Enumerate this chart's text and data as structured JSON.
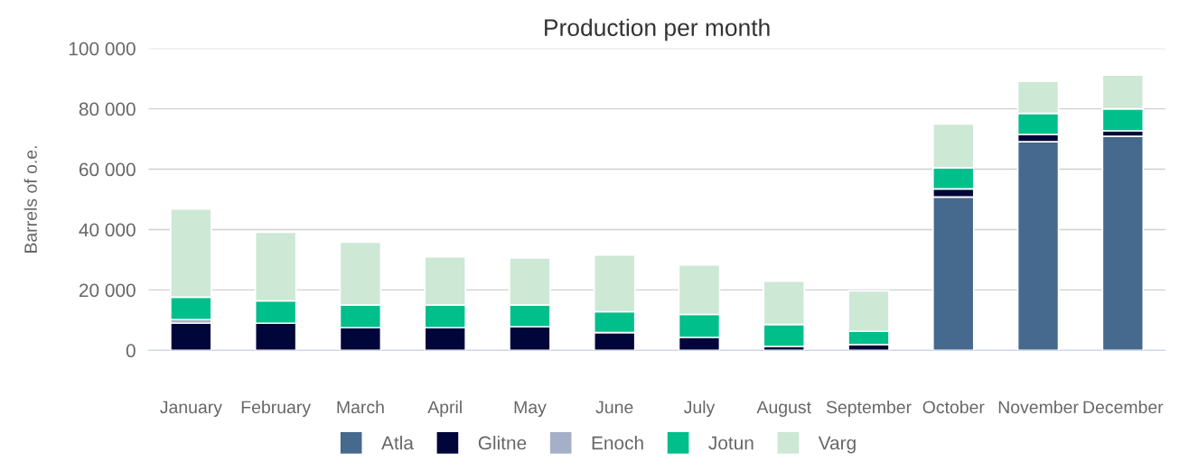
{
  "chart_data": {
    "type": "bar",
    "title": "Production per month",
    "ylabel": "Barrels of o.e.",
    "stacked": true,
    "categories": [
      "January",
      "February",
      "March",
      "April",
      "May",
      "June",
      "July",
      "August",
      "September",
      "October",
      "November",
      "December"
    ],
    "series": [
      {
        "name": "Atla",
        "color": "#46698e",
        "values": [
          0,
          0,
          0,
          0,
          0,
          0,
          0,
          0,
          0,
          50800,
          69100,
          70900
        ]
      },
      {
        "name": "Glitne",
        "color": "#00053a",
        "values": [
          9000,
          9000,
          7500,
          7500,
          7800,
          5900,
          4300,
          1300,
          1900,
          2700,
          2400,
          1800
        ]
      },
      {
        "name": "Enoch",
        "color": "#a5b0c8",
        "values": [
          1200,
          null,
          null,
          null,
          null,
          null,
          null,
          null,
          null,
          null,
          null,
          null
        ]
      },
      {
        "name": "Jotun",
        "color": "#00bf8a",
        "values": [
          7400,
          7400,
          7500,
          7500,
          7200,
          6900,
          7600,
          7300,
          4400,
          7000,
          7000,
          7300
        ]
      },
      {
        "name": "Varg",
        "color": "#cde8d5",
        "values": [
          29200,
          22700,
          20800,
          16000,
          15600,
          18800,
          16400,
          14300,
          13400,
          14500,
          10600,
          11200
        ]
      }
    ],
    "ylim": [
      0,
      100000
    ],
    "yticks": [
      {
        "value": 0,
        "label": "0"
      },
      {
        "value": 20000,
        "label": "20 000"
      },
      {
        "value": 40000,
        "label": "40 000"
      },
      {
        "value": 60000,
        "label": "60 000"
      },
      {
        "value": 80000,
        "label": "80 000"
      },
      {
        "value": 100000,
        "label": "100 000"
      }
    ],
    "grid": "y",
    "legend": "bottom"
  }
}
